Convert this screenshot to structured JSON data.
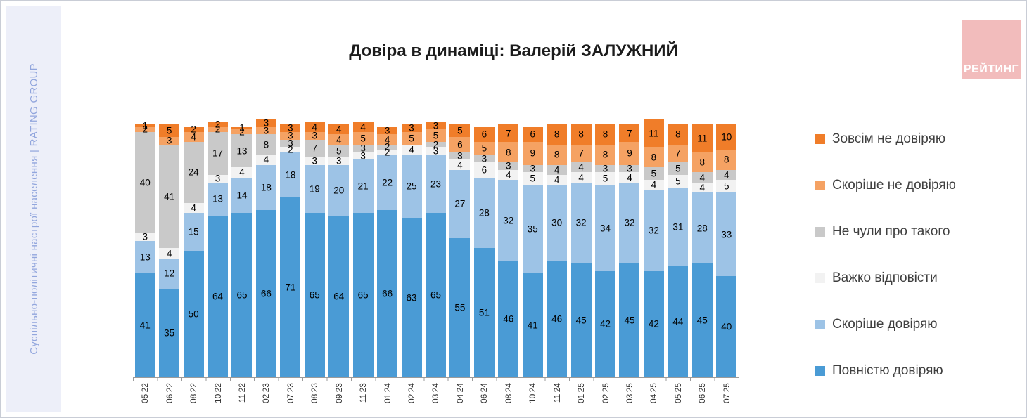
{
  "page": {
    "sidebar_text": "Суспільно-політичні настрої населення | RATING GROUP",
    "logo_text": "РЕЙТИНГ"
  },
  "chart_data": {
    "type": "bar",
    "stacked": true,
    "orientation": "vertical",
    "title": "Довіра в динаміці: Валерій ЗАЛУЖНИЙ",
    "xlabel": "",
    "ylabel": "",
    "ylim": [
      0,
      100
    ],
    "units": "percent",
    "grid": false,
    "value_labels": "shown on every segment, zero values unlabeled",
    "x_tick_rotation": 90,
    "legend_position": "right",
    "legend_order_top_to_bottom": [
      "Зовсім не довіряю",
      "Скоріше не довіряю",
      "Не чули про такого",
      "Важко відповісти",
      "Скоріше довіряю",
      "Повністю довіряю"
    ],
    "categories": [
      "05'22",
      "06'22",
      "08'22",
      "10'22",
      "11'22",
      "02'23",
      "07'23",
      "08'23",
      "09'23",
      "11'23",
      "01'24",
      "02'24",
      "03'24",
      "04'24",
      "06'24",
      "08'24",
      "10'24",
      "11'24",
      "01'25",
      "02'25",
      "03'25",
      "04'25",
      "05'25",
      "06'25",
      "07'25"
    ],
    "series": [
      {
        "name": "Повністю довіряю",
        "color": "#4a9bd5",
        "values": [
          41,
          35,
          50,
          64,
          65,
          66,
          71,
          65,
          64,
          65,
          66,
          63,
          65,
          55,
          51,
          46,
          41,
          46,
          45,
          42,
          45,
          42,
          44,
          45,
          40
        ]
      },
      {
        "name": "Скоріше довіряю",
        "color": "#9dc3e6",
        "values": [
          13,
          12,
          15,
          13,
          14,
          18,
          18,
          19,
          20,
          21,
          22,
          25,
          23,
          27,
          28,
          32,
          35,
          30,
          32,
          34,
          32,
          32,
          31,
          28,
          33
        ]
      },
      {
        "name": "Важко відповісти",
        "color": "#f2f2f2",
        "values": [
          3,
          4,
          4,
          3,
          4,
          4,
          2,
          3,
          3,
          3,
          2,
          4,
          3,
          4,
          6,
          4,
          5,
          4,
          4,
          5,
          4,
          4,
          5,
          4,
          5
        ]
      },
      {
        "name": "Не чули про такого",
        "color": "#c9c9c9",
        "values": [
          40,
          41,
          24,
          17,
          13,
          8,
          3,
          7,
          5,
          3,
          2,
          0,
          2,
          3,
          3,
          3,
          3,
          4,
          4,
          3,
          3,
          5,
          5,
          4,
          4
        ]
      },
      {
        "name": "Скоріше не довіряю",
        "color": "#f5a263",
        "values": [
          2,
          3,
          4,
          2,
          2,
          3,
          3,
          3,
          4,
          5,
          4,
          5,
          5,
          6,
          5,
          8,
          9,
          8,
          7,
          8,
          9,
          8,
          7,
          8,
          8
        ]
      },
      {
        "name": "Зовсім не довіряю",
        "color": "#f07d29",
        "values": [
          1,
          5,
          2,
          2,
          1,
          3,
          3,
          4,
          4,
          4,
          3,
          3,
          3,
          5,
          6,
          7,
          6,
          8,
          8,
          8,
          7,
          11,
          8,
          11,
          10
        ]
      }
    ]
  }
}
